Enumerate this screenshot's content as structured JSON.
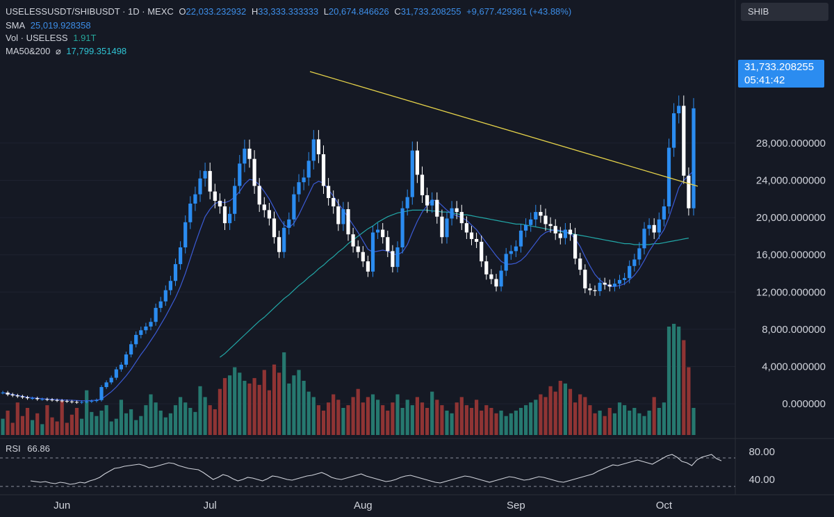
{
  "header": {
    "pair": "USELESSUSDT/SHIBUSDT · 1D · MEXC",
    "o_label": "O",
    "o_value": "22,033.232932",
    "h_label": "H",
    "h_value": "33,333.333333",
    "l_label": "L",
    "l_value": "20,674.846626",
    "c_label": "C",
    "c_value": "31,733.208255",
    "change": "+9,677.429361 (+43.88%)",
    "sma_label": "SMA",
    "sma_value": "25,019.928358",
    "vol_label": "Vol · USELESS",
    "vol_value": "1.91T",
    "ma_label": "MA50&200",
    "ma_symbol": "⌀",
    "ma_value": "17,799.351498"
  },
  "symbol_box": "SHIB",
  "price_tag": {
    "price": "31,733.208255",
    "countdown": "05:41:42"
  },
  "rsi": {
    "label": "RSI",
    "value": "66.86",
    "levels": [
      "80.00",
      "40.00"
    ]
  },
  "colors": {
    "up": "#2b8cf0",
    "down": "#ffffff",
    "vol_up": "#26786f",
    "vol_down": "#8f3434",
    "sma": "#3b5bd6",
    "ma": "#22a8a8",
    "trend": "#e6d34a",
    "bg": "#151924",
    "rsi": "#d1d4dc"
  },
  "chart_data": {
    "type": "candlestick",
    "title": "USELESSUSDT/SHIBUSDT · 1D · MEXC",
    "y_ticks": [
      "28,000.000000",
      "24,000.000000",
      "20,000.000000",
      "16,000.000000",
      "12,000.000000",
      "8,000.000000",
      "4,000.000000",
      "0.000000"
    ],
    "y_tick_values": [
      28000,
      24000,
      20000,
      16000,
      12000,
      8000,
      4000,
      0
    ],
    "ylim": [
      -3200,
      36500
    ],
    "x_labels": [
      "Jun",
      "Jul",
      "Aug",
      "Sep",
      "Oct"
    ],
    "x_label_days": [
      12,
      42,
      73,
      104,
      134
    ],
    "candles_close": [
      1200,
      1000,
      900,
      800,
      700,
      600,
      600,
      500,
      500,
      450,
      400,
      350,
      300,
      250,
      200,
      150,
      200,
      250,
      300,
      400,
      1800,
      2300,
      2800,
      3700,
      4200,
      5300,
      6400,
      7400,
      7900,
      8300,
      8800,
      10300,
      11000,
      12200,
      13200,
      15000,
      16800,
      19500,
      21500,
      22500,
      24200,
      25000,
      22800,
      21800,
      21200,
      19400,
      20400,
      23400,
      25800,
      27400,
      26300,
      23400,
      21400,
      20800,
      19900,
      17900,
      16300,
      18900,
      19800,
      22500,
      23800,
      24300,
      26100,
      28400,
      26800,
      23400,
      22100,
      21200,
      19300,
      20900,
      18200,
      16900,
      16300,
      15300,
      14200,
      18400,
      18700,
      17900,
      16400,
      14700,
      16800,
      21000,
      22200,
      27200,
      24600,
      22400,
      21300,
      21900,
      20100,
      17900,
      19900,
      21000,
      20600,
      19400,
      18400,
      17700,
      17400,
      15300,
      13900,
      13400,
      12600,
      14300,
      16100,
      16400,
      16900,
      18600,
      19200,
      19800,
      20600,
      20200,
      19300,
      19100,
      18300,
      17800,
      18700,
      18200,
      15600,
      14400,
      12400,
      12200,
      12100,
      13000,
      12800,
      12600,
      12900,
      13300,
      13500,
      14800,
      15500,
      16700,
      18800,
      19200,
      18400,
      19800,
      21200,
      27500,
      31200,
      32000,
      24500,
      21000,
      31733
    ],
    "sma": [
      1200,
      1100,
      1000,
      900,
      800,
      700,
      650,
      600,
      550,
      500,
      480,
      450,
      420,
      400,
      380,
      350,
      330,
      330,
      350,
      400,
      500,
      900,
      1300,
      1800,
      2400,
      3000,
      3700,
      4500,
      5300,
      6000,
      6800,
      7600,
      8500,
      9400,
      10400,
      11400,
      12600,
      14000,
      15600,
      17200,
      18700,
      20100,
      20900,
      21500,
      21700,
      21600,
      21800,
      22200,
      22800,
      23600,
      24100,
      24000,
      23500,
      22800,
      22000,
      21000,
      20000,
      19200,
      18900,
      19400,
      20300,
      21400,
      22500,
      23600,
      23900,
      23700,
      23000,
      22300,
      21500,
      20800,
      20000,
      19200,
      18400,
      17500,
      16600,
      16300,
      16400,
      16500,
      16400,
      16100,
      16000,
      16300,
      17100,
      18400,
      19600,
      20600,
      21300,
      21900,
      21800,
      21300,
      20800,
      20400,
      20200,
      20000,
      19700,
      19200,
      18700,
      18000,
      17300,
      16600,
      15900,
      15300,
      15000,
      15000,
      15100,
      15400,
      15900,
      16600,
      17300,
      18000,
      18400,
      18600,
      18700,
      18600,
      18500,
      18300,
      17700,
      16900,
      15800,
      14800,
      13900,
      13300,
      12900,
      12600,
      12600,
      12700,
      12900,
      13300,
      13800,
      14500,
      15400,
      16400,
      17200,
      17900,
      18700,
      20000,
      21600,
      23200,
      24000,
      24500,
      25020
    ],
    "ma50_start": 44,
    "ma50": [
      5000,
      5400,
      5900,
      6400,
      6900,
      7400,
      7900,
      8400,
      8900,
      9300,
      9800,
      10300,
      10800,
      11300,
      11700,
      12200,
      12700,
      13100,
      13600,
      14000,
      14500,
      14900,
      15400,
      15800,
      16300,
      16700,
      17200,
      17600,
      18000,
      18400,
      18800,
      19100,
      19500,
      19800,
      20100,
      20300,
      20500,
      20600,
      20700,
      20800,
      20800,
      20800,
      20800,
      20700,
      20700,
      20600,
      20600,
      20500,
      20400,
      20300,
      20300,
      20200,
      20100,
      20000,
      19900,
      19800,
      19700,
      19600,
      19500,
      19400,
      19300,
      19300,
      19200,
      19100,
      19000,
      18900,
      18800,
      18700,
      18600,
      18500,
      18400,
      18300,
      18200,
      18100,
      18000,
      17900,
      17800,
      17700,
      17600,
      17500,
      17400,
      17300,
      17200,
      17200,
      17100,
      17100,
      17100,
      17100,
      17200,
      17200,
      17300,
      17400,
      17500,
      17600,
      17700,
      17800
    ],
    "volume": [
      12,
      18,
      9,
      24,
      14,
      20,
      11,
      16,
      8,
      22,
      13,
      10,
      25,
      9,
      15,
      20,
      12,
      33,
      17,
      14,
      18,
      22,
      10,
      12,
      26,
      16,
      19,
      11,
      14,
      22,
      30,
      24,
      18,
      13,
      16,
      22,
      28,
      24,
      20,
      17,
      36,
      28,
      22,
      19,
      34,
      42,
      44,
      50,
      46,
      40,
      38,
      42,
      37,
      48,
      33,
      52,
      46,
      61,
      38,
      44,
      48,
      40,
      32,
      28,
      22,
      18,
      24,
      30,
      26,
      20,
      22,
      28,
      34,
      24,
      28,
      30,
      26,
      22,
      18,
      24,
      30,
      20,
      26,
      22,
      28,
      24,
      20,
      32,
      26,
      22,
      18,
      16,
      24,
      28,
      22,
      20,
      26,
      18,
      22,
      20,
      16,
      18,
      14,
      16,
      18,
      20,
      22,
      24,
      26,
      30,
      28,
      36,
      32,
      40,
      38,
      34,
      24,
      30,
      28,
      22,
      16,
      18,
      14,
      20,
      16,
      24,
      22,
      18,
      20,
      16,
      14,
      18,
      28,
      20,
      24,
      80,
      120,
      80,
      70,
      50,
      20
    ],
    "rsi_series": [
      38,
      37,
      36,
      37,
      35,
      34,
      36,
      35,
      33,
      34,
      36,
      35,
      38,
      40,
      43,
      48,
      52,
      56,
      57,
      59,
      60,
      61,
      62,
      60,
      57,
      58,
      60,
      62,
      64,
      63,
      60,
      58,
      56,
      55,
      54,
      50,
      45,
      40,
      43,
      47,
      45,
      41,
      38,
      40,
      43,
      42,
      40,
      38,
      41,
      45,
      44,
      42,
      40,
      39,
      41,
      43,
      45,
      46,
      48,
      50,
      47,
      43,
      41,
      40,
      42,
      44,
      46,
      48,
      45,
      43,
      41,
      39,
      37,
      38,
      40,
      43,
      45,
      46,
      44,
      42,
      40,
      38,
      36,
      35,
      37,
      39,
      41,
      43,
      45,
      44,
      42,
      40,
      38,
      36,
      38,
      40,
      42,
      44,
      43,
      41,
      39,
      40,
      42,
      44,
      43,
      41,
      39,
      37,
      36,
      38,
      40,
      42,
      44,
      46,
      48,
      52,
      55,
      58,
      61,
      60,
      62,
      64,
      66,
      68,
      66,
      64,
      62,
      66,
      70,
      74,
      76,
      72,
      66,
      64,
      60,
      68,
      72,
      74,
      76,
      70,
      66.86
    ]
  }
}
